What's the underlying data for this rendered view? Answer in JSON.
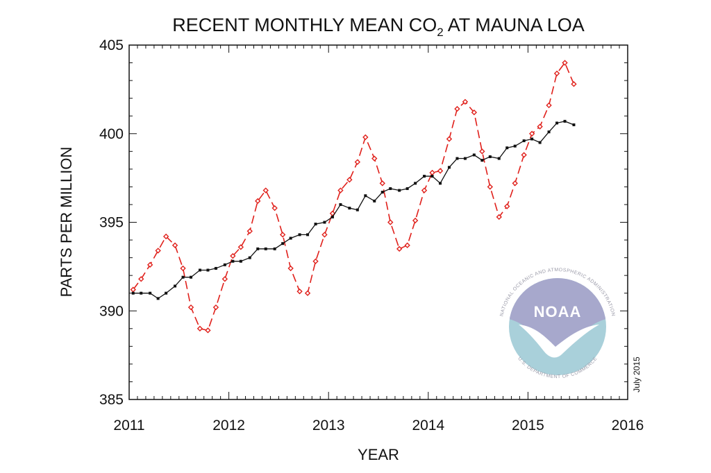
{
  "chart_data": {
    "type": "line",
    "title_main": "RECENT MONTHLY MEAN CO",
    "title_sub": "2",
    "title_rest": " AT MAUNA LOA",
    "xlabel": "YEAR",
    "ylabel": "PARTS PER MILLION",
    "xlim": [
      2011,
      2016
    ],
    "ylim": [
      385,
      405
    ],
    "x_ticks": [
      "2011",
      "2012",
      "2013",
      "2014",
      "2015",
      "2016"
    ],
    "y_ticks": [
      "385",
      "390",
      "395",
      "400",
      "405"
    ],
    "grid": false,
    "date_stamp": "July 2015",
    "x": [
      2011.04,
      2011.12,
      2011.21,
      2011.29,
      2011.37,
      2011.46,
      2011.54,
      2011.62,
      2011.71,
      2011.79,
      2011.87,
      2011.96,
      2012.04,
      2012.12,
      2012.21,
      2012.29,
      2012.37,
      2012.46,
      2012.54,
      2012.62,
      2012.71,
      2012.79,
      2012.87,
      2012.96,
      2013.04,
      2013.12,
      2013.21,
      2013.29,
      2013.37,
      2013.46,
      2013.54,
      2013.62,
      2013.71,
      2013.79,
      2013.87,
      2013.96,
      2014.04,
      2014.12,
      2014.21,
      2014.29,
      2014.37,
      2014.46,
      2014.54,
      2014.62,
      2014.71,
      2014.79,
      2014.87,
      2014.96,
      2015.04,
      2015.12,
      2015.21,
      2015.29,
      2015.37,
      2015.46
    ],
    "series": [
      {
        "color": "#e0201b",
        "style": "dashed",
        "marker": "diamond",
        "values": [
          391.2,
          391.8,
          392.6,
          393.4,
          394.2,
          393.7,
          392.4,
          390.2,
          389.0,
          388.9,
          390.2,
          391.8,
          393.1,
          393.6,
          394.5,
          396.2,
          396.8,
          395.8,
          394.3,
          392.4,
          391.1,
          391.0,
          392.8,
          394.3,
          395.5,
          396.8,
          397.4,
          398.4,
          399.8,
          398.6,
          397.2,
          395.0,
          393.5,
          393.7,
          395.1,
          396.8,
          397.8,
          397.9,
          399.7,
          401.4,
          401.8,
          401.2,
          399.0,
          397.0,
          395.3,
          395.9,
          397.2,
          398.8,
          400.0,
          400.4,
          401.6,
          403.4,
          404.0,
          402.8
        ]
      },
      {
        "color": "#111111",
        "style": "solid",
        "marker": "square",
        "values": [
          391.0,
          391.0,
          391.0,
          390.7,
          391.0,
          391.4,
          391.9,
          391.9,
          392.3,
          392.3,
          392.4,
          392.6,
          392.8,
          392.8,
          393.0,
          393.5,
          393.5,
          393.5,
          393.8,
          394.1,
          394.3,
          394.3,
          394.9,
          395.0,
          395.3,
          396.0,
          395.8,
          395.7,
          396.5,
          396.2,
          396.7,
          396.9,
          396.8,
          396.9,
          397.2,
          397.6,
          397.6,
          397.2,
          398.1,
          398.6,
          398.6,
          398.8,
          398.5,
          398.7,
          398.6,
          399.2,
          399.3,
          399.6,
          399.7,
          399.5,
          400.1,
          400.6,
          400.7,
          400.5
        ]
      }
    ]
  },
  "logo": {
    "wordmark": "NOAA",
    "ring_top": "NATIONAL OCEANIC AND ATMOSPHERIC ADMINISTRATION",
    "ring_bottom": "U.S. DEPARTMENT OF COMMERCE",
    "sky_color": "#a7a8cc",
    "sea_color": "#a9d0da"
  }
}
